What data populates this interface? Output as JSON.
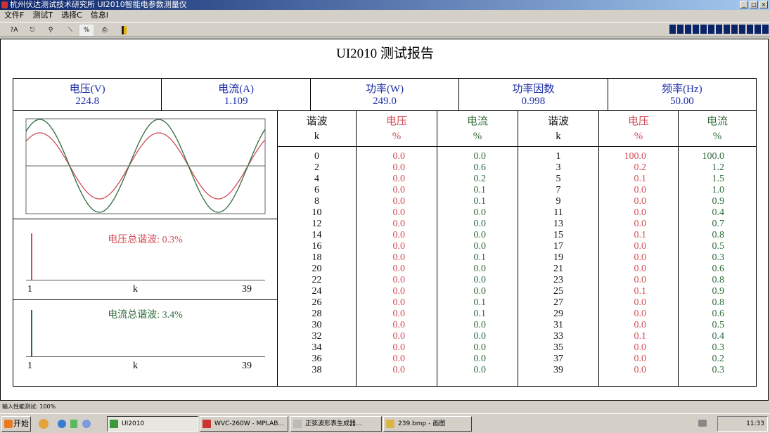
{
  "window": {
    "title": "杭州伏达测试技术研究所  UI2010智能电参数测量仪",
    "min": "_",
    "max": "□",
    "close": "×"
  },
  "menu": [
    "文件F",
    "测试T",
    "选择C",
    "信息I"
  ],
  "toolbar": {
    "icons": [
      "auto-range-icon",
      "lock-icon",
      "zoom-icon",
      "probe-icon",
      "percent-icon",
      "print-icon",
      "exit-icon"
    ],
    "labels": [
      "?A",
      "",
      "",
      "",
      "%",
      "",
      ""
    ]
  },
  "signal_level_segments": 14,
  "report": {
    "title": "UI2010 测试报告",
    "summary": [
      {
        "label": "电压(V)",
        "value": "224.8"
      },
      {
        "label": "电流(A)",
        "value": "1.109"
      },
      {
        "label": "功率(W)",
        "value": "249.0"
      },
      {
        "label": "功率因数",
        "value": "0.998"
      },
      {
        "label": "频率(Hz)",
        "value": "50.00"
      }
    ],
    "voltage_thd": "电压总谐波: 0.3%",
    "current_thd": "电流总谐波: 3.4%",
    "spectrum_axis": {
      "start": "1",
      "mid": "k",
      "end": "39"
    },
    "colors": {
      "voltage": "#d24b55",
      "current": "#2f6b3a",
      "label": "#1a2ca8"
    },
    "table": {
      "headers": [
        [
          "谐波",
          "k"
        ],
        [
          "电压",
          "%"
        ],
        [
          "电流",
          "%"
        ],
        [
          "谐波",
          "k"
        ],
        [
          "电压",
          "%"
        ],
        [
          "电流",
          "%"
        ]
      ],
      "even_k": [
        "0",
        "2",
        "4",
        "6",
        "8",
        "10",
        "12",
        "14",
        "16",
        "18",
        "20",
        "22",
        "24",
        "26",
        "28",
        "30",
        "32",
        "34",
        "36",
        "38"
      ],
      "even_v": [
        "0.0",
        "0.0",
        "0.0",
        "0.0",
        "0.0",
        "0.0",
        "0.0",
        "0.0",
        "0.0",
        "0.0",
        "0.0",
        "0.0",
        "0.0",
        "0.0",
        "0.0",
        "0.0",
        "0.0",
        "0.0",
        "0.0",
        "0.0"
      ],
      "even_i": [
        "0.0",
        "0.6",
        "0.2",
        "0.1",
        "0.1",
        "0.0",
        "0.0",
        "0.0",
        "0.0",
        "0.1",
        "0.0",
        "0.0",
        "0.0",
        "0.1",
        "0.1",
        "0.0",
        "0.0",
        "0.0",
        "0.0",
        "0.0"
      ],
      "odd_k": [
        "1",
        "3",
        "5",
        "7",
        "9",
        "11",
        "13",
        "15",
        "17",
        "19",
        "21",
        "23",
        "25",
        "27",
        "29",
        "31",
        "33",
        "35",
        "37",
        "39"
      ],
      "odd_v": [
        "100.0",
        "0.2",
        "0.1",
        "0.0",
        "0.0",
        "0.0",
        "0.0",
        "0.1",
        "0.0",
        "0.0",
        "0.0",
        "0.0",
        "0.1",
        "0.0",
        "0.0",
        "0.0",
        "0.1",
        "0.0",
        "0.0",
        "0.0"
      ],
      "odd_i": [
        "100.0",
        "1.2",
        "1.5",
        "1.0",
        "0.9",
        "0.4",
        "0.7",
        "0.8",
        "0.5",
        "0.3",
        "0.6",
        "0.8",
        "0.9",
        "0.8",
        "0.6",
        "0.5",
        "0.4",
        "0.3",
        "0.2",
        "0.3"
      ]
    }
  },
  "status": "输入性能测试: 100%",
  "taskbar": {
    "start": "开始",
    "tasks": [
      "UI2010",
      "WVC-260W - MPLAB...",
      "正弦波形表生成器...",
      "239.bmp - 画图"
    ],
    "clock": "11:33"
  }
}
